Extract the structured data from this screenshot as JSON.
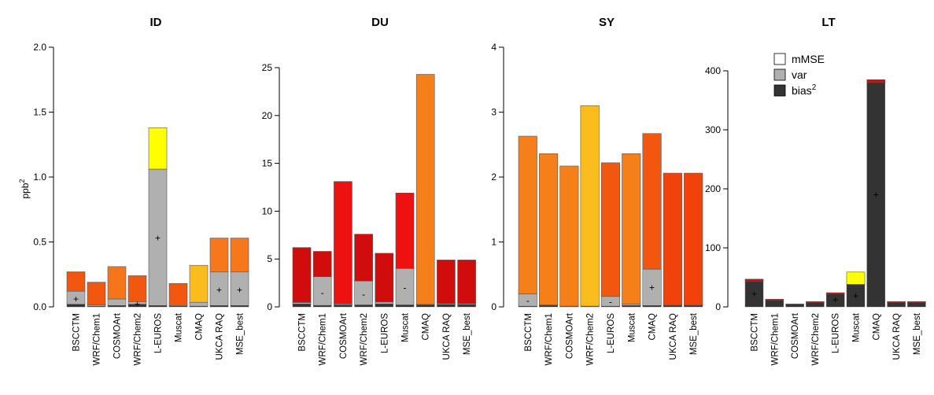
{
  "chart_data": [
    {
      "type": "bar",
      "stacked": true,
      "title": "ID",
      "ylabel": "ppb²",
      "ylim": [
        0,
        2.0
      ],
      "yticks": [
        "0.0",
        "0.5",
        "1.0",
        "1.5",
        "2.0"
      ],
      "ytick_values": [
        0,
        0.5,
        1.0,
        1.5,
        2.0
      ],
      "categories": [
        "BSCCTM",
        "WRF/Chem1",
        "COSMOArt",
        "WRF/Chem2",
        "L-EUROS",
        "Muscat",
        "CMAQ",
        "UKCA RAQ",
        "MSE_best"
      ],
      "bias2": [
        0.02,
        0.005,
        0.01,
        0.02,
        0.01,
        0.005,
        0.005,
        0.01,
        0.01
      ],
      "var": [
        0.1,
        0.01,
        0.05,
        0.02,
        1.05,
        0.005,
        0.03,
        0.26,
        0.26
      ],
      "total": [
        0.27,
        0.19,
        0.31,
        0.24,
        1.38,
        0.18,
        0.32,
        0.53,
        0.53
      ],
      "mmse_colors": [
        "#f2570f",
        "#f2570f",
        "#f6751b",
        "#f2570f",
        "#ffff00",
        "#f2570f",
        "#fbbc1e",
        "#f6771c",
        "#f6771c"
      ],
      "markers": [
        "+",
        "",
        "",
        "+",
        "+",
        "",
        "",
        "+",
        "+"
      ],
      "marker_values": [
        0.06,
        null,
        null,
        0.02,
        0.53,
        null,
        null,
        0.13,
        0.13
      ]
    },
    {
      "type": "bar",
      "stacked": true,
      "title": "DU",
      "ylim": [
        0,
        25
      ],
      "yticks": [
        "0",
        "5",
        "10",
        "15",
        "20",
        "25"
      ],
      "ytick_values": [
        0,
        5,
        10,
        15,
        20,
        25
      ],
      "categories": [
        "BSCCTM",
        "WRF/Chem1",
        "COSMOArt",
        "WRF/Chem2",
        "L-EUROS",
        "Muscat",
        "CMAQ",
        "UKCA RAQ",
        "MSE_best"
      ],
      "bias2": [
        0.3,
        0.15,
        0.2,
        0.2,
        0.3,
        0.2,
        0.2,
        0.25,
        0.25
      ],
      "var": [
        0.15,
        3.0,
        0.1,
        2.5,
        0.2,
        3.8,
        0.05,
        0.1,
        0.1
      ],
      "total": [
        6.2,
        5.8,
        13.1,
        7.6,
        5.6,
        11.9,
        24.3,
        4.9,
        4.9
      ],
      "mmse_colors": [
        "#d00c0c",
        "#d00c0c",
        "#ee1111",
        "#d00c0c",
        "#d00c0c",
        "#ee1111",
        "#f5801a",
        "#d00c0c",
        "#d00c0c"
      ],
      "markers": [
        "",
        "-",
        "",
        "-",
        "",
        "-",
        "",
        "",
        ""
      ],
      "marker_values": [
        null,
        1.5,
        null,
        1.3,
        null,
        2.0,
        null,
        null,
        null
      ]
    },
    {
      "type": "bar",
      "stacked": true,
      "title": "SY",
      "ylim": [
        0,
        4
      ],
      "yticks": [
        "0",
        "1",
        "2",
        "3",
        "4"
      ],
      "ytick_values": [
        0,
        1,
        2,
        3,
        4
      ],
      "categories": [
        "BSCCTM",
        "WRF/Chem1",
        "COSMOArt",
        "WRF/Chem2",
        "L-EUROS",
        "Muscat",
        "CMAQ",
        "UKCA RAQ",
        "MSE_best"
      ],
      "bias2": [
        0.01,
        0.02,
        0.005,
        0.005,
        0.01,
        0.02,
        0.02,
        0.02,
        0.02
      ],
      "var": [
        0.19,
        0.01,
        0.005,
        0.005,
        0.15,
        0.02,
        0.56,
        0.01,
        0.01
      ],
      "total": [
        2.63,
        2.36,
        2.17,
        3.1,
        2.22,
        2.36,
        2.67,
        2.06,
        2.06
      ],
      "mmse_colors": [
        "#f5801a",
        "#f5801a",
        "#f5801a",
        "#fbbc1e",
        "#f2570f",
        "#f5801a",
        "#f2570f",
        "#f2420c",
        "#f2420c"
      ],
      "markers": [
        "-",
        "",
        "",
        "",
        "-",
        "",
        "+",
        "",
        ""
      ],
      "marker_values": [
        0.1,
        null,
        null,
        null,
        0.08,
        null,
        0.3,
        null,
        null
      ]
    },
    {
      "type": "bar",
      "stacked": true,
      "title": "LT",
      "ylim": [
        0,
        400
      ],
      "yticks": [
        "0",
        "100",
        "200",
        "300",
        "400"
      ],
      "ytick_values": [
        0,
        100,
        200,
        300,
        400
      ],
      "categories": [
        "BSCCTM",
        "WRF/Chem1",
        "COSMOArt",
        "WRF/Chem2",
        "L-EUROS",
        "Muscat",
        "CMAQ",
        "UKCA RAQ",
        "MSE_best"
      ],
      "bias2": [
        43,
        11,
        4,
        7,
        22,
        38,
        380,
        7,
        7
      ],
      "var": [
        0,
        0,
        0,
        0,
        0,
        0,
        0,
        0,
        0
      ],
      "total": [
        47,
        13,
        5,
        9,
        24,
        59,
        385,
        9,
        9
      ],
      "mmse_colors": [
        "#d00c0c",
        "#d00c0c",
        "#d00c0c",
        "#d00c0c",
        "#d00c0c",
        "#ffff00",
        "#d00c0c",
        "#d00c0c",
        "#d00c0c"
      ],
      "markers": [
        "+",
        "",
        "",
        "",
        "+",
        "+",
        "+",
        "",
        ""
      ],
      "marker_values": [
        22,
        null,
        null,
        null,
        12,
        19,
        190,
        null,
        null
      ],
      "legend": {
        "position": "top-left",
        "items": [
          {
            "label": "mMSE",
            "color": "#ffffff"
          },
          {
            "label": "var",
            "color": "#b0b0b0"
          },
          {
            "label": "bias",
            "superscript": "2",
            "color": "#333333"
          }
        ]
      }
    }
  ],
  "colors": {
    "var": "#b0b0b0",
    "bias2": "#333333",
    "axis": "#000000",
    "marker": "#ffffff"
  }
}
